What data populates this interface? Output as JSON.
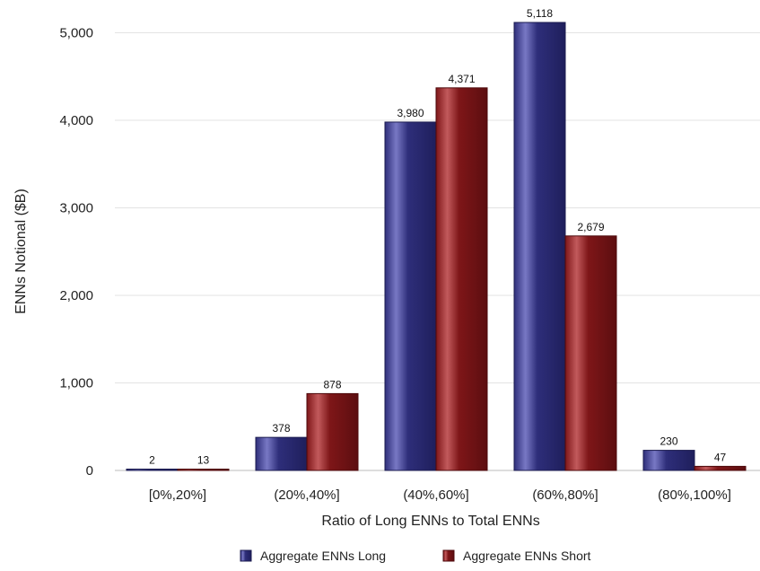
{
  "chart_data": {
    "type": "bar",
    "title": "",
    "xlabel": "Ratio of Long ENNs to Total ENNs",
    "ylabel": "ENNs Notional ($B)",
    "categories": [
      "[0%,20%]",
      "(20%,40%]",
      "(40%,60%]",
      "(60%,80%]",
      "(80%,100%]"
    ],
    "series": [
      {
        "name": "Aggregate ENNs Long",
        "values": [
          2,
          378,
          3980,
          5118,
          230
        ],
        "labels": [
          "2",
          "378",
          "3,980",
          "5,118",
          "230"
        ],
        "color": "#2e2e7a"
      },
      {
        "name": "Aggregate ENNs Short",
        "values": [
          13,
          878,
          4371,
          2679,
          47
        ],
        "labels": [
          "13",
          "878",
          "4,371",
          "2,679",
          "47"
        ],
        "color": "#7e1618"
      }
    ],
    "ylim": [
      0,
      5400
    ],
    "yticks": [
      0,
      1000,
      2000,
      3000,
      4000,
      5000
    ],
    "ytick_labels": [
      "0",
      "1,000",
      "2,000",
      "3,000",
      "4,000",
      "5,000"
    ],
    "grid": true,
    "legend_position": "bottom"
  }
}
